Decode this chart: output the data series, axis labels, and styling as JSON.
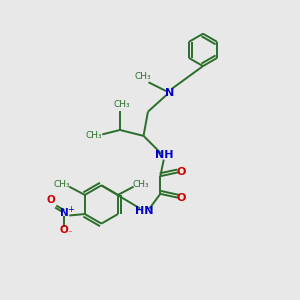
{
  "bg_color": "#e8e8e8",
  "bond_color": "#2a6e2a",
  "N_color": "#0000cc",
  "O_color": "#cc0000",
  "lw": 1.4,
  "figsize": [
    3.0,
    3.0
  ],
  "dpi": 100,
  "xlim": [
    0,
    10
  ],
  "ylim": [
    0,
    10
  ]
}
